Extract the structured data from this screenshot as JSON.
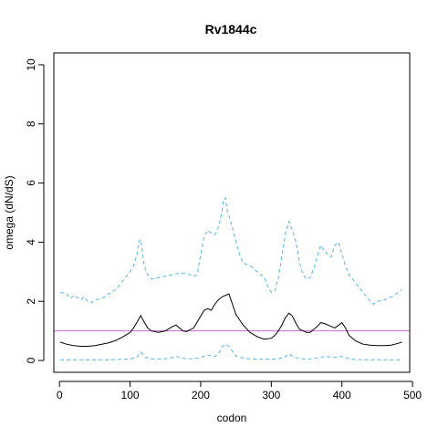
{
  "chart_data": {
    "type": "line",
    "title": "Rv1844c",
    "xlabel": "codon",
    "ylabel": "omega (dN/dS)",
    "xlim": [
      -8,
      496
    ],
    "ylim": [
      -0.4,
      10.4
    ],
    "x_ticks": [
      0,
      100,
      200,
      300,
      400,
      500
    ],
    "y_ticks": [
      0,
      2,
      4,
      6,
      8,
      10
    ],
    "reference_line": {
      "y": 1,
      "color": "#cc66cc"
    },
    "series": [
      {
        "style": "solid",
        "color": "#000000",
        "x": [
          1,
          10,
          20,
          30,
          40,
          50,
          60,
          70,
          80,
          90,
          100,
          105,
          110,
          115,
          120,
          125,
          130,
          140,
          150,
          160,
          165,
          170,
          175,
          180,
          190,
          200,
          205,
          210,
          215,
          220,
          225,
          230,
          235,
          240,
          245,
          250,
          260,
          270,
          280,
          290,
          300,
          305,
          310,
          315,
          320,
          325,
          330,
          335,
          340,
          350,
          355,
          360,
          365,
          370,
          375,
          380,
          390,
          400,
          405,
          410,
          420,
          430,
          440,
          450,
          460,
          470,
          480,
          485
        ],
        "y": [
          0.62,
          0.55,
          0.5,
          0.48,
          0.48,
          0.5,
          0.55,
          0.6,
          0.68,
          0.8,
          0.95,
          1.1,
          1.3,
          1.52,
          1.3,
          1.1,
          1.0,
          0.95,
          1.0,
          1.15,
          1.2,
          1.1,
          1.0,
          0.98,
          1.1,
          1.5,
          1.7,
          1.75,
          1.7,
          1.9,
          2.05,
          2.15,
          2.2,
          2.25,
          1.9,
          1.55,
          1.2,
          0.95,
          0.8,
          0.72,
          0.75,
          0.85,
          1.0,
          1.2,
          1.45,
          1.6,
          1.5,
          1.25,
          1.05,
          0.95,
          0.95,
          1.05,
          1.15,
          1.28,
          1.25,
          1.2,
          1.1,
          1.28,
          1.1,
          0.85,
          0.65,
          0.55,
          0.52,
          0.5,
          0.5,
          0.52,
          0.58,
          0.62
        ]
      },
      {
        "style": "dashed",
        "color": "#56b4e9",
        "x": [
          1,
          10,
          15,
          20,
          30,
          35,
          40,
          45,
          50,
          60,
          70,
          80,
          90,
          100,
          105,
          110,
          112,
          115,
          118,
          120,
          125,
          130,
          140,
          150,
          160,
          170,
          180,
          190,
          195,
          200,
          205,
          210,
          215,
          220,
          225,
          230,
          232,
          235,
          238,
          240,
          245,
          250,
          255,
          260,
          270,
          280,
          290,
          295,
          300,
          305,
          310,
          315,
          320,
          325,
          330,
          335,
          340,
          345,
          350,
          355,
          360,
          365,
          370,
          375,
          380,
          385,
          390,
          395,
          400,
          405,
          410,
          420,
          430,
          440,
          445,
          450,
          460,
          470,
          480,
          485
        ],
        "y": [
          2.3,
          2.25,
          2.1,
          2.2,
          2.05,
          2.15,
          2.0,
          1.95,
          2.05,
          2.1,
          2.25,
          2.4,
          2.7,
          3.0,
          3.2,
          3.6,
          4.0,
          4.1,
          3.6,
          3.2,
          2.9,
          2.75,
          2.8,
          2.85,
          2.9,
          2.95,
          2.95,
          2.85,
          2.9,
          3.6,
          4.2,
          4.4,
          4.3,
          4.25,
          4.5,
          5.0,
          5.4,
          5.5,
          5.0,
          4.9,
          4.5,
          4.0,
          3.6,
          3.3,
          3.2,
          3.0,
          2.8,
          2.5,
          2.3,
          2.35,
          2.8,
          3.5,
          4.3,
          4.7,
          4.4,
          4.0,
          3.3,
          2.9,
          2.75,
          2.8,
          3.1,
          3.5,
          3.9,
          3.7,
          3.6,
          3.5,
          3.9,
          4.0,
          3.6,
          3.2,
          2.9,
          2.6,
          2.3,
          2.0,
          1.9,
          2.0,
          2.05,
          2.15,
          2.3,
          2.4
        ]
      },
      {
        "style": "dashed",
        "color": "#56b4e9",
        "x": [
          1,
          20,
          40,
          60,
          80,
          100,
          105,
          110,
          115,
          118,
          122,
          130,
          140,
          150,
          160,
          165,
          170,
          180,
          190,
          200,
          205,
          210,
          220,
          225,
          230,
          235,
          240,
          245,
          250,
          260,
          270,
          280,
          290,
          300,
          310,
          320,
          325,
          330,
          335,
          340,
          350,
          360,
          370,
          375,
          380,
          390,
          400,
          405,
          410,
          420,
          440,
          460,
          480,
          485
        ],
        "y": [
          0.02,
          0.02,
          0.02,
          0.02,
          0.03,
          0.05,
          0.08,
          0.12,
          0.28,
          0.22,
          0.1,
          0.06,
          0.05,
          0.06,
          0.1,
          0.14,
          0.1,
          0.06,
          0.06,
          0.1,
          0.15,
          0.18,
          0.14,
          0.22,
          0.45,
          0.55,
          0.48,
          0.3,
          0.15,
          0.08,
          0.05,
          0.04,
          0.04,
          0.04,
          0.06,
          0.12,
          0.22,
          0.15,
          0.1,
          0.06,
          0.05,
          0.06,
          0.1,
          0.14,
          0.12,
          0.1,
          0.14,
          0.1,
          0.05,
          0.03,
          0.02,
          0.02,
          0.02,
          0.02
        ]
      }
    ]
  }
}
